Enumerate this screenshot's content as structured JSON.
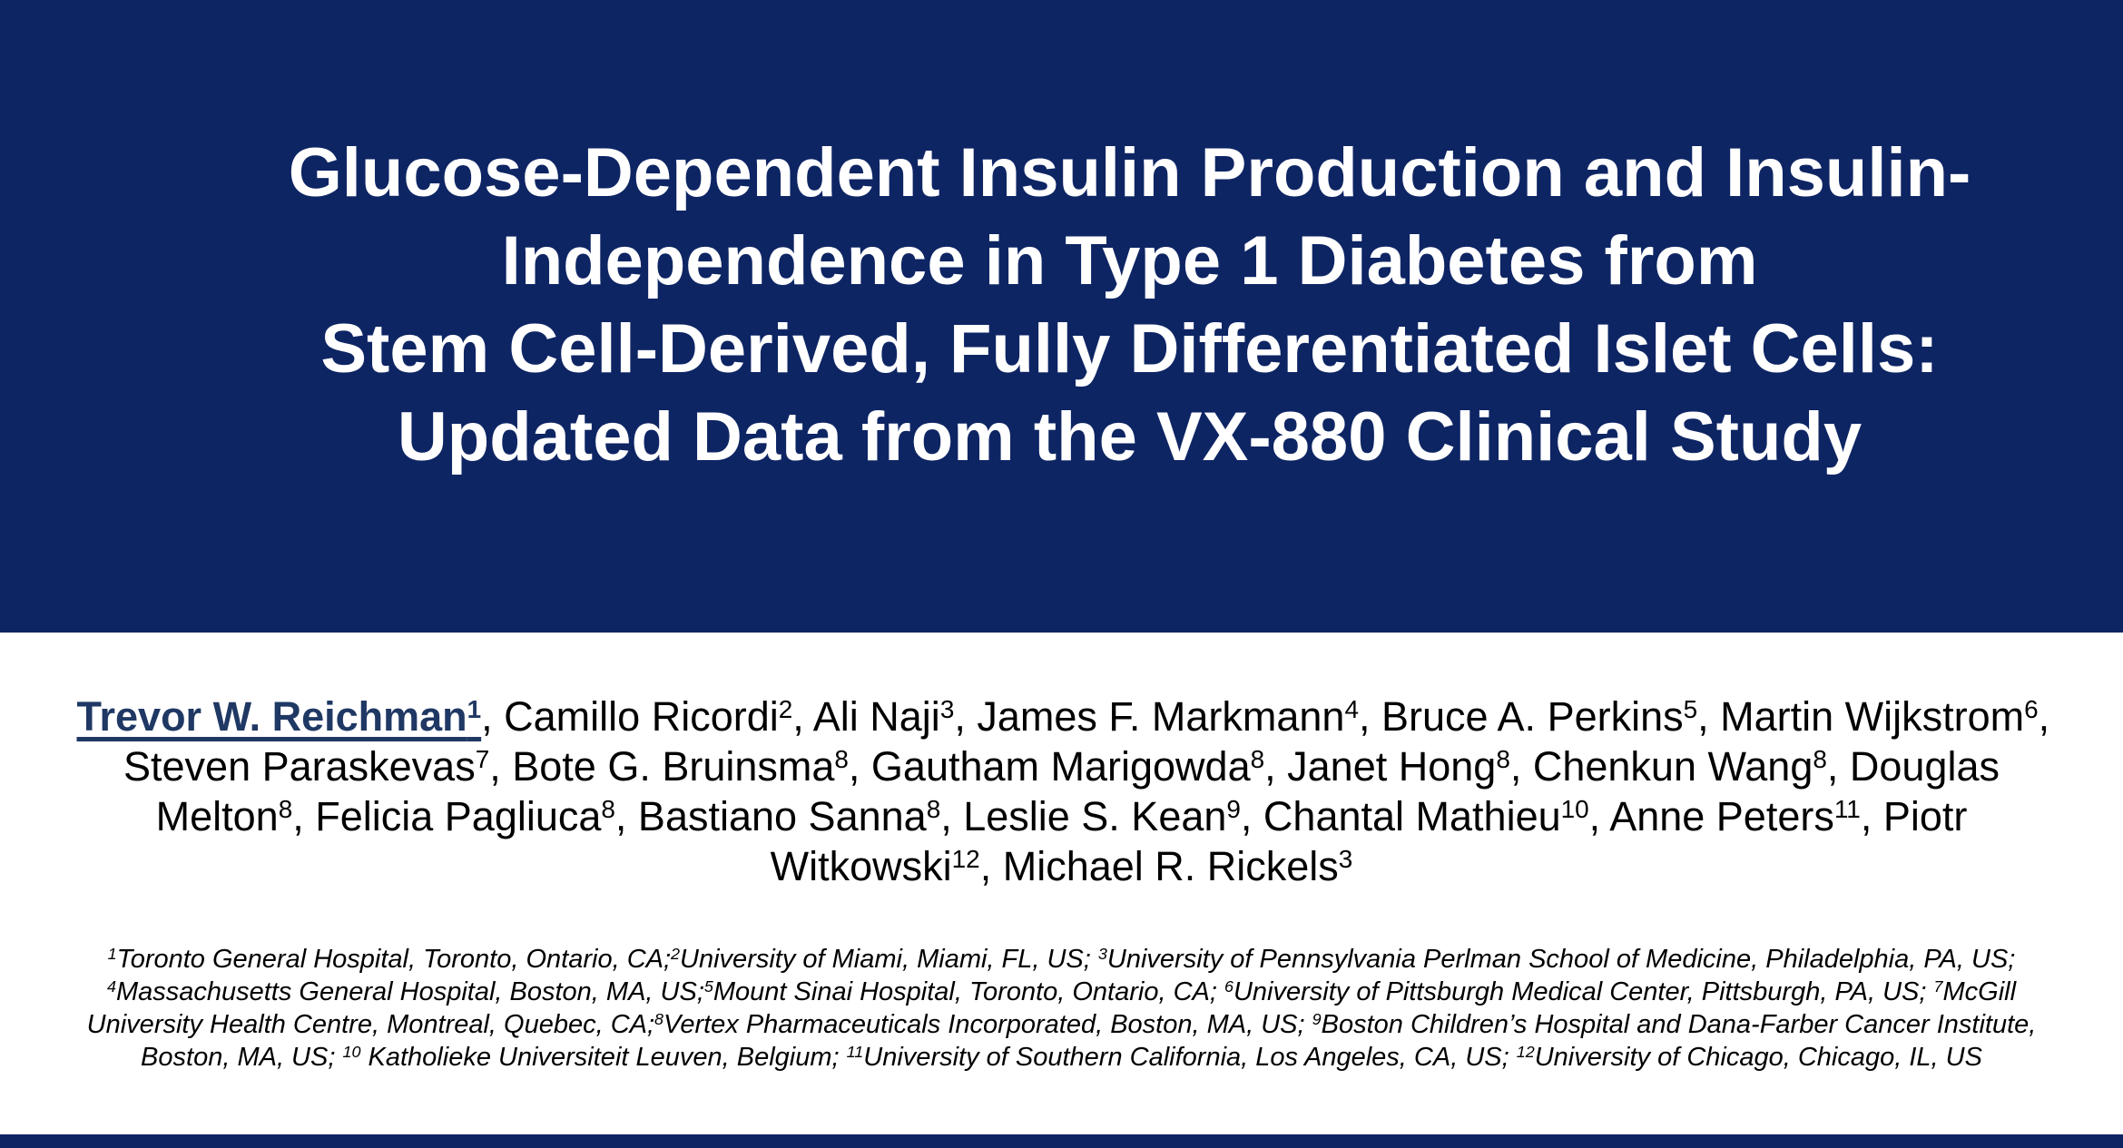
{
  "colors": {
    "banner_navy": "#0e2564",
    "first_author_navy": "#1f3864",
    "title_text": "#ffffff",
    "body_text": "#000000"
  },
  "title": {
    "lines": [
      "Glucose-Dependent Insulin Production and Insulin-",
      "Independence in Type 1 Diabetes from",
      "Stem Cell-Derived, Fully Differentiated Islet Cells:",
      "Updated Data from the VX-880 Clinical Study"
    ]
  },
  "authors": {
    "lines": [
      [
        {
          "t": "Trevor W. Reichman",
          "s": "1",
          "first": true
        },
        {
          "t": ", Camillo Ricordi",
          "s": "2"
        },
        {
          "t": ", Ali Naji",
          "s": "3"
        },
        {
          "t": ", James F. Markmann",
          "s": "4"
        },
        {
          "t": ", Bruce A. Perkins",
          "s": "5"
        },
        {
          "t": ", Martin Wijkstrom",
          "s": "6"
        },
        {
          "t": ","
        }
      ],
      [
        {
          "t": "Steven Paraskevas",
          "s": "7"
        },
        {
          "t": ", Bote G. Bruinsma",
          "s": "8"
        },
        {
          "t": ", Gautham Marigowda",
          "s": "8"
        },
        {
          "t": ", Janet Hong",
          "s": "8"
        },
        {
          "t": ", Chenkun Wang",
          "s": "8"
        },
        {
          "t": ", Douglas"
        }
      ],
      [
        {
          "t": "Melton",
          "s": "8"
        },
        {
          "t": ", Felicia Pagliuca",
          "s": "8"
        },
        {
          "t": ", Bastiano Sanna",
          "s": "8"
        },
        {
          "t": ", Leslie S. Kean",
          "s": "9"
        },
        {
          "t": ", Chantal Mathieu",
          "s": "10"
        },
        {
          "t": ", Anne Peters",
          "s": "11"
        },
        {
          "t": ", Piotr"
        }
      ],
      [
        {
          "t": "Witkowski",
          "s": "12"
        },
        {
          "t": ", Michael R. Rickels",
          "s": "3"
        }
      ]
    ]
  },
  "affiliations": {
    "lines": [
      [
        {
          "s": "1",
          "t": "Toronto General Hospital, Toronto, Ontario, CA;"
        },
        {
          "s": "2",
          "t": "University of Miami, Miami, FL, US; "
        },
        {
          "s": "3",
          "t": "University of Pennsylvania Perlman School of Medicine, Philadelphia, PA, US;"
        }
      ],
      [
        {
          "s": "4",
          "t": "Massachusetts General Hospital, Boston, MA, US;"
        },
        {
          "s": "5",
          "t": "Mount Sinai Hospital, Toronto, Ontario, CA; "
        },
        {
          "s": "6",
          "t": "University of Pittsburgh Medical Center, Pittsburgh, PA, US; "
        },
        {
          "s": "7",
          "t": "McGill"
        }
      ],
      [
        {
          "t": "University Health Centre, Montreal, Quebec, CA;"
        },
        {
          "s": "8",
          "t": "Vertex Pharmaceuticals Incorporated, Boston, MA, US; "
        },
        {
          "s": "9",
          "t": "Boston Children’s Hospital and Dana-Farber Cancer Institute,"
        }
      ],
      [
        {
          "t": "Boston, MA, US; "
        },
        {
          "s": "10",
          "t": " Katholieke Universiteit Leuven, Belgium; "
        },
        {
          "s": "11",
          "t": "University of Southern California, Los Angeles, CA, US; "
        },
        {
          "s": "12",
          "t": "University of Chicago, Chicago, IL, US"
        }
      ]
    ]
  }
}
